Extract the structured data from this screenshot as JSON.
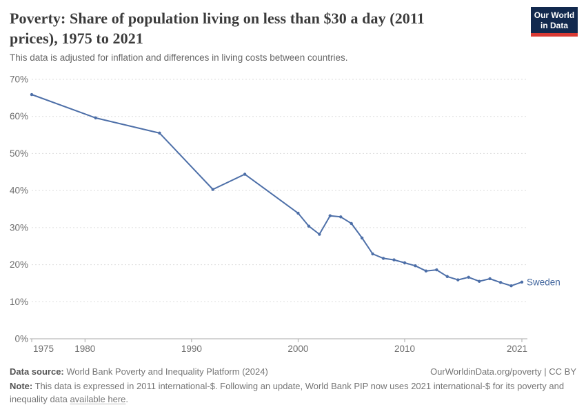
{
  "header": {
    "title_line1": "Poverty: Share of population living on less than $30 a day (2011",
    "title_line2": "prices), 1975 to 2021",
    "subtitle": "This data is adjusted for inflation and differences in living costs between countries."
  },
  "logo": {
    "line1": "Our World",
    "line2": "in Data",
    "bg_color": "#12294e",
    "bar_color": "#d93a34"
  },
  "chart_data": {
    "type": "line",
    "title": "Poverty: Share of population living on less than $30 a day (2011 prices), 1975 to 2021",
    "entity_label": "Sweden",
    "xlim": [
      1975,
      2021
    ],
    "ylim": [
      0,
      70
    ],
    "xticks": [
      1975,
      1980,
      1990,
      2000,
      2010,
      2021
    ],
    "yticks": [
      0,
      10,
      20,
      30,
      40,
      50,
      60,
      70
    ],
    "ytick_suffix": "%",
    "grid": "horizontal-dashed",
    "legend_position": "end-of-line",
    "series": [
      {
        "name": "Sweden",
        "points": [
          [
            1975,
            65.9
          ],
          [
            1981,
            59.6
          ],
          [
            1987,
            55.5
          ],
          [
            1992,
            40.3
          ],
          [
            1995,
            44.4
          ],
          [
            2000,
            33.9
          ],
          [
            2001,
            30.4
          ],
          [
            2002,
            28.2
          ],
          [
            2003,
            33.2
          ],
          [
            2004,
            32.9
          ],
          [
            2005,
            31.1
          ],
          [
            2006,
            27.2
          ],
          [
            2007,
            22.9
          ],
          [
            2008,
            21.7
          ],
          [
            2009,
            21.3
          ],
          [
            2010,
            20.5
          ],
          [
            2011,
            19.7
          ],
          [
            2012,
            18.3
          ],
          [
            2013,
            18.6
          ],
          [
            2014,
            16.8
          ],
          [
            2015,
            15.9
          ],
          [
            2016,
            16.6
          ],
          [
            2017,
            15.5
          ],
          [
            2018,
            16.2
          ],
          [
            2019,
            15.2
          ],
          [
            2020,
            14.3
          ],
          [
            2021,
            15.3
          ]
        ]
      }
    ],
    "colors": {
      "series": "#4d6fa8",
      "series_label": "#44689f",
      "grid": "#dddddd",
      "axis": "#a8a8a8",
      "tick_text": "#6e6e6e"
    }
  },
  "footer": {
    "source_label": "Data source:",
    "source_text": " World Bank Poverty and Inequality Platform (2024)",
    "credit": "OurWorldinData.org/poverty | CC BY",
    "note_label": "Note:",
    "note_line1": " This data is expressed in 2011 international-$. Following an update, World Bank PIP now uses 2021 international-$ for its poverty and",
    "note_line2_prefix": "inequality data ",
    "note_link": "available here",
    "note_suffix": "."
  }
}
